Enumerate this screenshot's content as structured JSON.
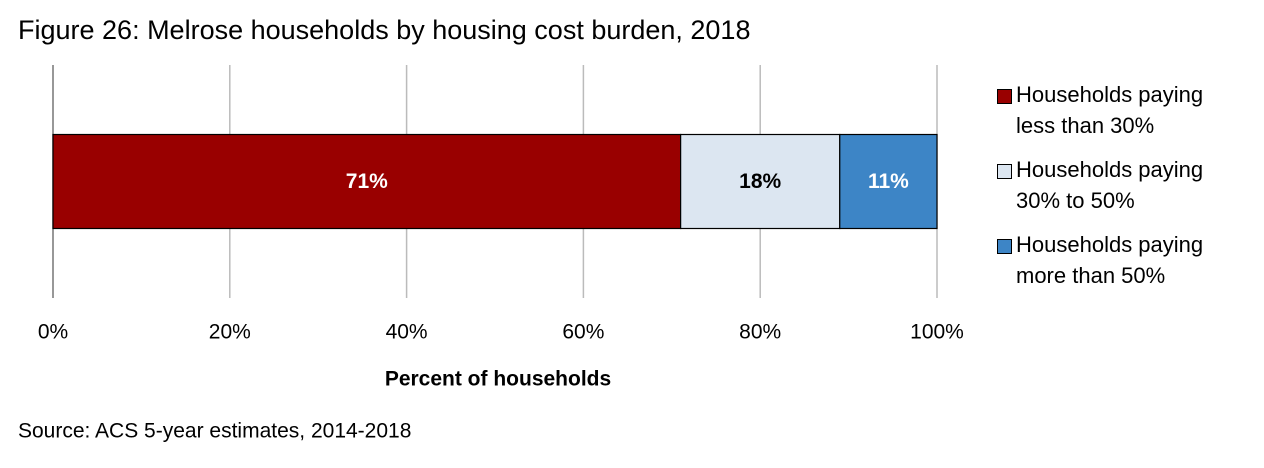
{
  "chart_data": {
    "type": "bar",
    "orientation": "horizontal",
    "stacked": true,
    "title": "Figure 26: Melrose households by housing cost burden, 2018",
    "xlabel": "Percent of households",
    "source": "Source: ACS 5-year estimates, 2014-2018",
    "categories": [
      null
    ],
    "series": [
      {
        "name": "Households paying less than 30%",
        "color": "#990000",
        "label_color": "#ffffff",
        "values": [
          71
        ],
        "value_labels": [
          "71%"
        ]
      },
      {
        "name": "Households paying 30% to 50%",
        "color": "#dce6f1",
        "label_color": "#000000",
        "values": [
          18
        ],
        "value_labels": [
          "18%"
        ]
      },
      {
        "name": "Households paying more than 50%",
        "color": "#3d85c6",
        "label_color": "#ffffff",
        "values": [
          11
        ],
        "value_labels": [
          "11%"
        ]
      }
    ],
    "xlim": [
      0,
      100
    ],
    "xticks": [
      {
        "value": 0,
        "label": "0%"
      },
      {
        "value": 20,
        "label": "20%"
      },
      {
        "value": 40,
        "label": "40%"
      },
      {
        "value": 60,
        "label": "60%"
      },
      {
        "value": 80,
        "label": "80%"
      },
      {
        "value": 100,
        "label": "100%"
      }
    ],
    "grid": true,
    "legend": "right"
  }
}
